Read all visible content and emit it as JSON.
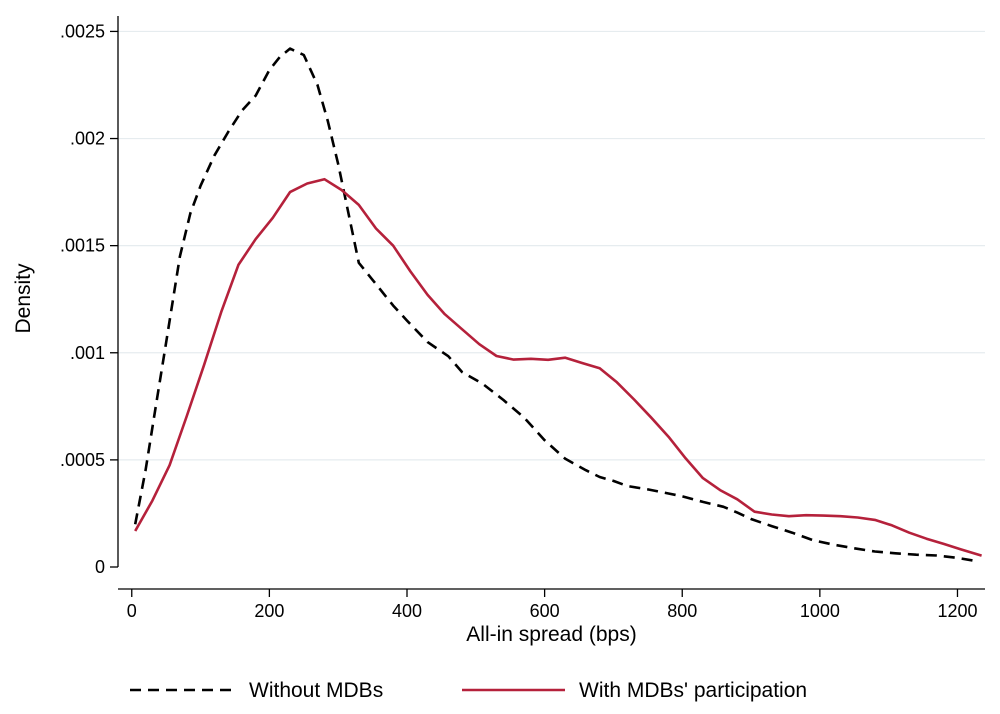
{
  "chart_data": {
    "type": "line",
    "title": "",
    "xlabel": "All-in spread (bps)",
    "ylabel": "Density",
    "xlim": [
      -20,
      1240
    ],
    "ylim": [
      0,
      0.0026
    ],
    "x_ticks": [
      0,
      200,
      400,
      600,
      800,
      1000,
      1200
    ],
    "x_tick_labels": [
      "0",
      "200",
      "400",
      "600",
      "800",
      "1000",
      "1200"
    ],
    "y_ticks": [
      0,
      0.0005,
      0.001,
      0.0015,
      0.002,
      0.0025
    ],
    "y_tick_labels": [
      "0",
      ".0005",
      ".001",
      ".0015",
      ".002",
      ".0025"
    ],
    "grid": "horizontal",
    "legend_position": "bottom",
    "series": [
      {
        "name": "Without MDBs",
        "color": "#000000",
        "dash": "dashed",
        "x": [
          5,
          20,
          35,
          50,
          70,
          85,
          100,
          120,
          140,
          160,
          180,
          200,
          215,
          230,
          250,
          270,
          285,
          300,
          315,
          330,
          350,
          380,
          400,
          430,
          460,
          480,
          510,
          540,
          570,
          600,
          630,
          660,
          680,
          700,
          720,
          750,
          780,
          800,
          830,
          860,
          880,
          900,
          930,
          960,
          990,
          1020,
          1050,
          1080,
          1110,
          1140,
          1170,
          1200,
          1230
        ],
        "y": [
          0.0002,
          0.00045,
          0.00075,
          0.00105,
          0.00145,
          0.00165,
          0.00178,
          0.00192,
          0.00203,
          0.00213,
          0.0022,
          0.00232,
          0.00238,
          0.00242,
          0.00239,
          0.00225,
          0.00208,
          0.00188,
          0.00165,
          0.00142,
          0.00134,
          0.00122,
          0.00115,
          0.00105,
          0.000984,
          0.00091,
          0.000855,
          0.00078,
          0.000698,
          0.000592,
          0.000505,
          0.000452,
          0.00042,
          0.000402,
          0.000378,
          0.000362,
          0.000343,
          0.00033,
          0.000304,
          0.000281,
          0.000254,
          0.000224,
          0.000191,
          0.00016,
          0.000125,
          0.000104,
          8.75e-05,
          7.23e-05,
          6.38e-05,
          5.73e-05,
          5.36e-05,
          4.26e-05,
          2.62e-05
        ]
      },
      {
        "name": "With MDBs' participation",
        "color": "#b5213b",
        "dash": "solid",
        "x": [
          5,
          30,
          55,
          80,
          105,
          130,
          155,
          180,
          205,
          230,
          255,
          280,
          305,
          330,
          355,
          380,
          405,
          430,
          455,
          480,
          505,
          530,
          555,
          580,
          605,
          630,
          655,
          680,
          705,
          730,
          755,
          780,
          805,
          830,
          855,
          880,
          905,
          930,
          955,
          980,
          1005,
          1030,
          1055,
          1080,
          1105,
          1130,
          1155,
          1180,
          1205,
          1235
        ],
        "y": [
          0.000168,
          0.00031,
          0.000475,
          0.000705,
          0.000942,
          0.00119,
          0.00141,
          0.00153,
          0.00163,
          0.00175,
          0.00179,
          0.00181,
          0.00176,
          0.00169,
          0.00158,
          0.0015,
          0.00138,
          0.00127,
          0.00118,
          0.00111,
          0.00104,
          0.000985,
          0.000968,
          0.000972,
          0.000967,
          0.000977,
          0.000952,
          0.000928,
          0.000862,
          0.000782,
          0.000697,
          0.000608,
          0.000507,
          0.000415,
          0.000359,
          0.000316,
          0.000258,
          0.000245,
          0.000237,
          0.000242,
          0.00024,
          0.000237,
          0.000231,
          0.00022,
          0.000194,
          0.00016,
          0.000132,
          0.000108,
          8.22e-05,
          5.3e-05
        ]
      }
    ]
  }
}
